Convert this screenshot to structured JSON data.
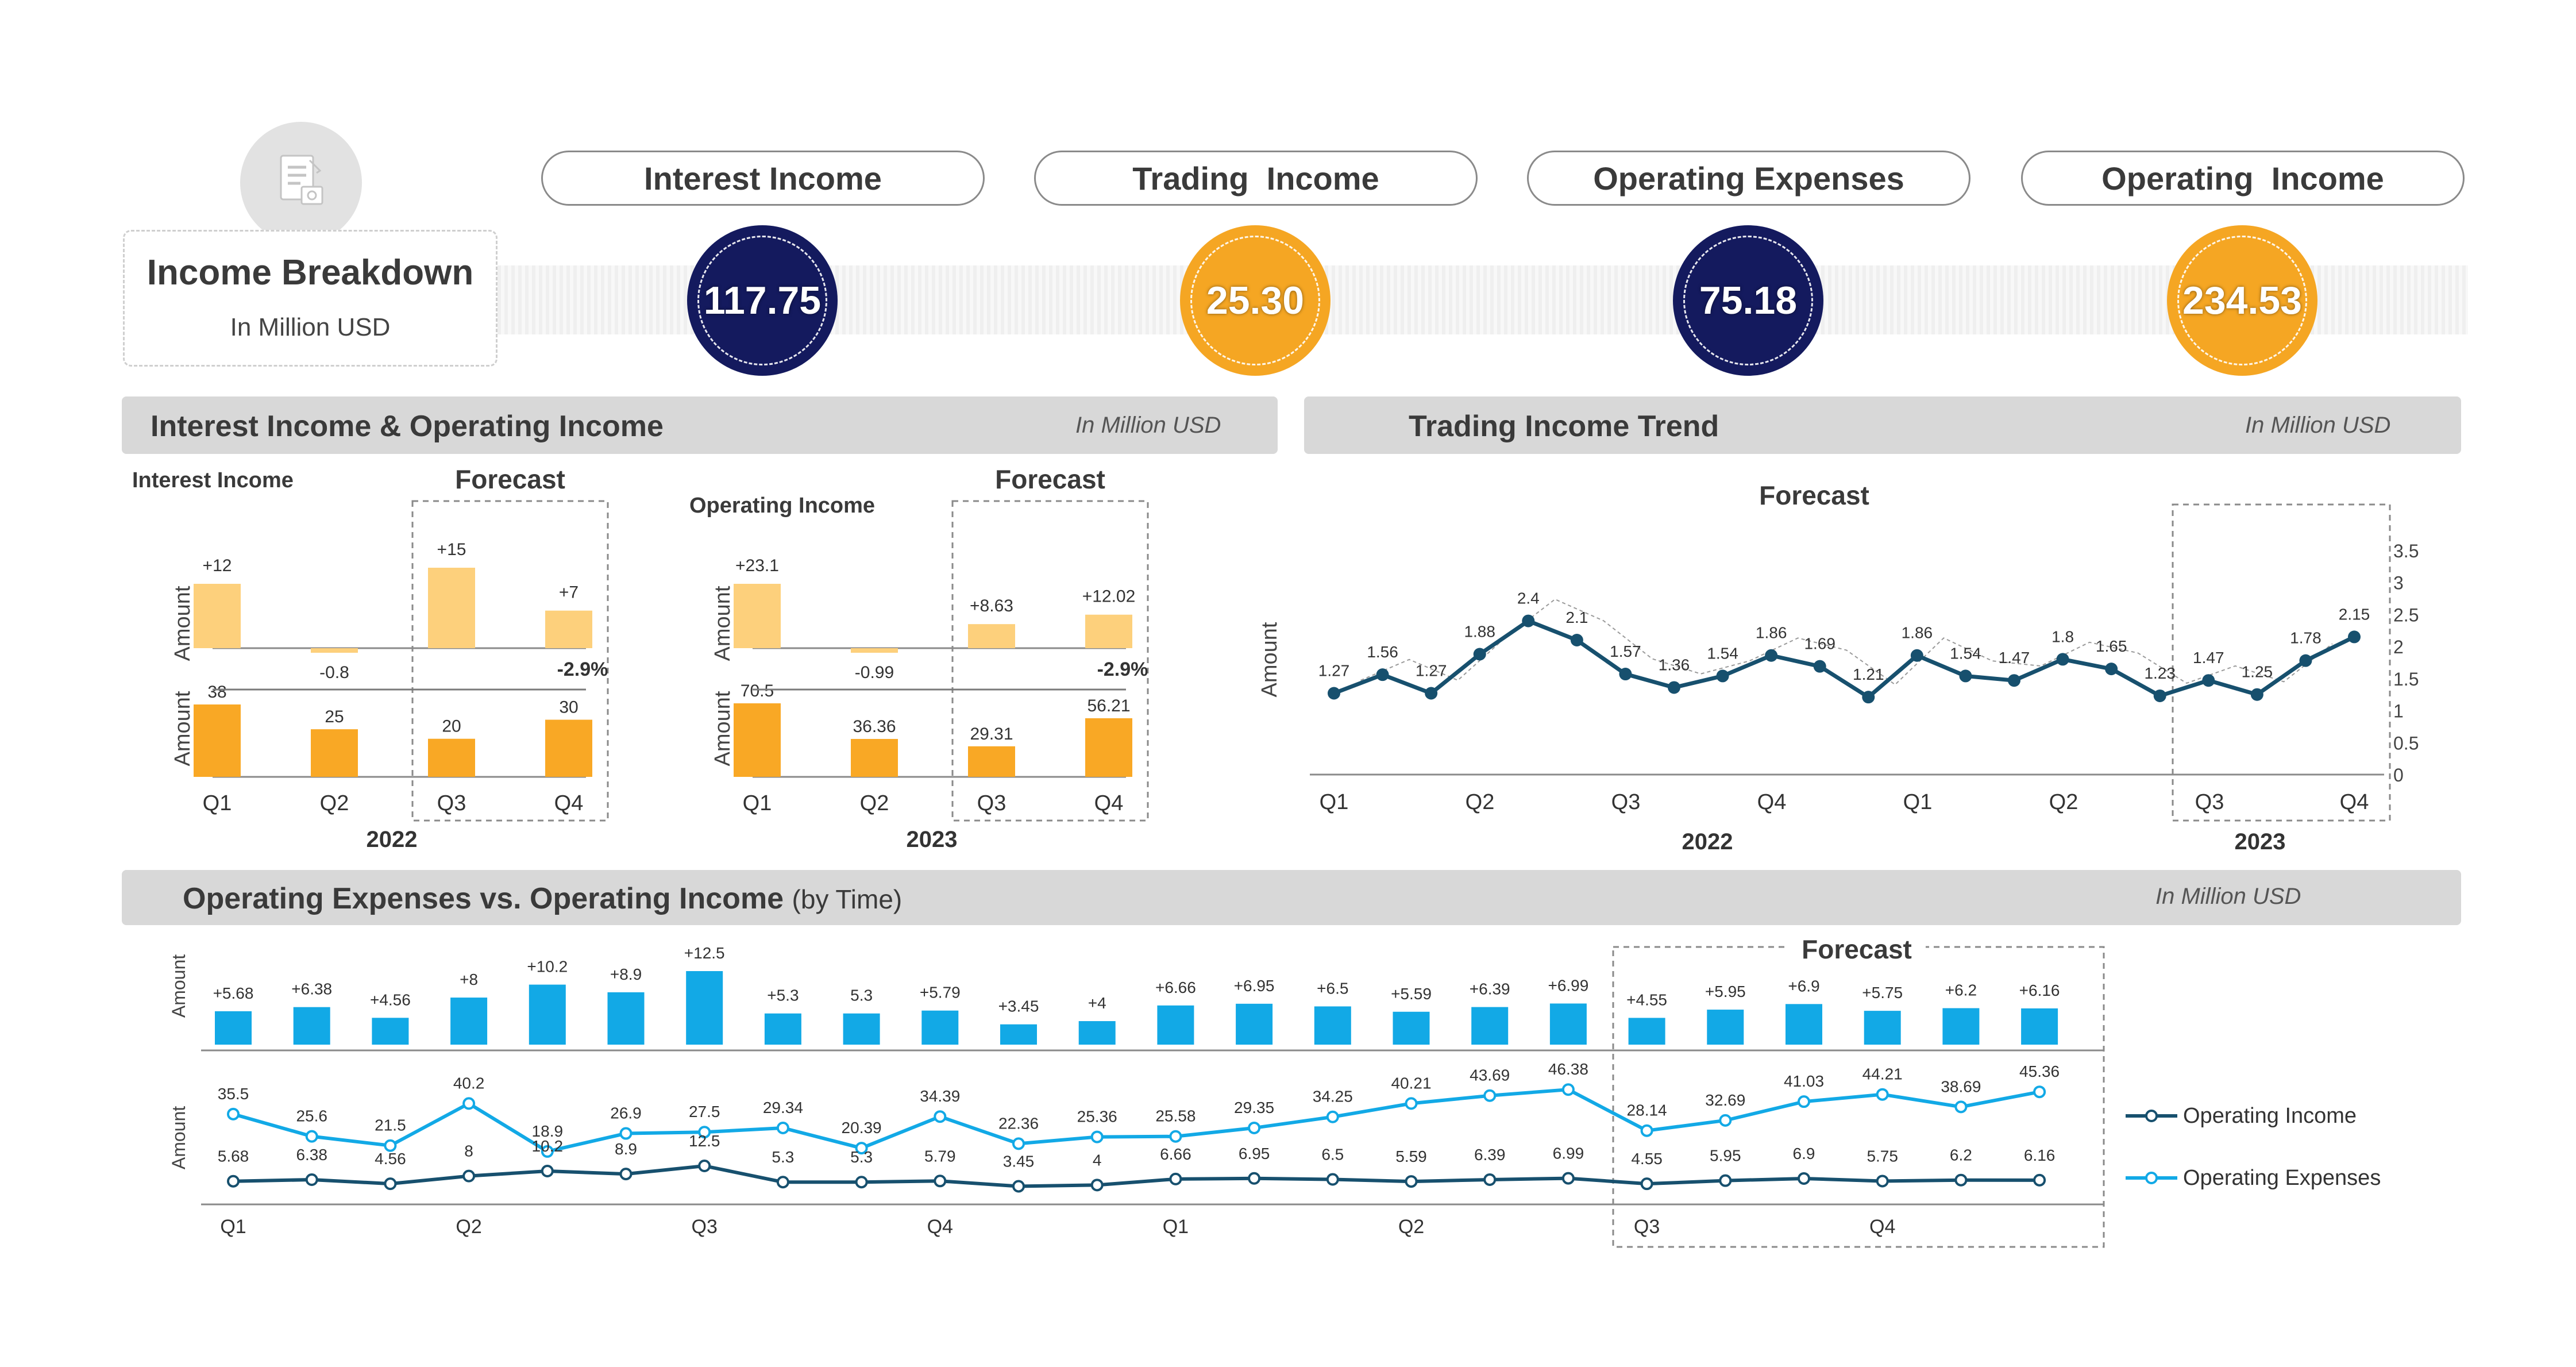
{
  "header": {
    "title": "Income Breakdown",
    "subtitle": "In Million USD",
    "icon": "document-icon"
  },
  "kpis": [
    {
      "label": "Interest Income",
      "value": "117.75",
      "color": "#141a5e"
    },
    {
      "label": "Trading  Income",
      "value": "25.30",
      "color": "#f5a623"
    },
    {
      "label": "Operating Expenses",
      "value": "75.18",
      "color": "#141a5e"
    },
    {
      "label": "Operating  Income",
      "value": "234.53",
      "color": "#f5a623"
    }
  ],
  "sections": {
    "left": {
      "title": "Interest Income & Operating Income",
      "unit": "In Million USD"
    },
    "right": {
      "title": "Trading Income Trend",
      "unit": "In Million USD"
    },
    "bottom": {
      "title": "Operating Expenses vs. Operating Income",
      "title_suffix": "(by Time)",
      "unit": "In Million USD"
    }
  },
  "colors": {
    "light_bar": "#fdd07c",
    "dark_bar": "#f9a825",
    "navy": "#17506e",
    "cyan": "#12a9e6",
    "band": "#d8d8d8"
  },
  "chart_data": [
    {
      "type": "bar",
      "name": "Interest Income",
      "top_label": "Interest Income",
      "forecast_label": "Forecast",
      "ylabel": "Amount",
      "year": "2022",
      "categories": [
        "Q1",
        "Q2",
        "Q3",
        "Q4"
      ],
      "change_values": [
        12,
        -0.8,
        15,
        7
      ],
      "change_labels": [
        "+12",
        "-0.8",
        "+15",
        "+7"
      ],
      "values": [
        38,
        25,
        20,
        30
      ],
      "value_labels": [
        "38",
        "25",
        "20",
        "30"
      ],
      "forecast_categories": [
        "Q3",
        "Q4"
      ],
      "annotation": "-2.9%"
    },
    {
      "type": "bar",
      "name": "Operating Income",
      "top_label": "Operating Income",
      "forecast_label": "Forecast",
      "ylabel": "Amount",
      "year": "2023",
      "categories": [
        "Q1",
        "Q2",
        "Q3",
        "Q4"
      ],
      "change_values": [
        23.1,
        -0.99,
        8.63,
        12.02
      ],
      "change_labels": [
        "+23.1",
        "-0.99",
        "+8.63",
        "+12.02"
      ],
      "values": [
        70.5,
        36.36,
        29.31,
        56.21
      ],
      "value_labels": [
        "70.5",
        "36.36",
        "29.31",
        "56.21"
      ],
      "forecast_categories": [
        "Q3",
        "Q4"
      ],
      "annotation": "-2.9%"
    },
    {
      "type": "line",
      "name": "Trading Income Trend",
      "forecast_label": "Forecast",
      "ylabel": "Amount",
      "ylim": [
        0,
        3.5
      ],
      "yticks": [
        "0",
        "0.5",
        "1",
        "1.5",
        "2",
        "2.5",
        "3",
        "3.5"
      ],
      "x_labels": [
        "Q1",
        "Q2",
        "Q3",
        "Q4",
        "Q1",
        "Q2",
        "Q3",
        "Q4"
      ],
      "years": [
        "2022",
        "2023"
      ],
      "series": [
        {
          "name": "Trading Income",
          "values": [
            1.27,
            1.56,
            1.27,
            1.88,
            2.4,
            2.1,
            1.57,
            1.36,
            1.54,
            1.86,
            1.69,
            1.21,
            1.86,
            1.54,
            1.47,
            1.8,
            1.65,
            1.23,
            1.47,
            1.25,
            1.78,
            2.15
          ],
          "labels": [
            "1.27",
            "1.56",
            "1.27",
            "1.88",
            "2.4",
            "2.1",
            "1.57",
            "1.36",
            "1.54",
            "1.86",
            "1.69",
            "1.21",
            "1.86",
            "1.54",
            "1.47",
            "1.8",
            "1.65",
            "1.23",
            "1.47",
            "1.25",
            "1.78",
            "2.15"
          ]
        }
      ],
      "forecast_range": "Q3-Q4 2023"
    },
    {
      "type": "bar",
      "name": "Operating Expenses vs. Operating Income change",
      "ylabel": "Amount",
      "forecast_label": "Forecast",
      "values": [
        5.68,
        6.38,
        4.56,
        8,
        10.2,
        8.9,
        12.5,
        5.3,
        5.3,
        5.79,
        3.45,
        4,
        6.66,
        6.95,
        6.5,
        5.59,
        6.39,
        6.99,
        4.55,
        5.95,
        6.9,
        5.75,
        6.2,
        6.16
      ],
      "labels": [
        "+5.68",
        "+6.38",
        "+4.56",
        "+8",
        "+10.2",
        "+8.9",
        "+12.5",
        "+5.3",
        "5.3",
        "+5.79",
        "+3.45",
        "+4",
        "+6.66",
        "+6.95",
        "+6.5",
        "+5.59",
        "+6.39",
        "+6.99",
        "+4.55",
        "+5.95",
        "+6.9",
        "+5.75",
        "+6.2",
        "+6.16"
      ]
    },
    {
      "type": "line",
      "name": "Operating Expenses vs. Operating Income",
      "ylabel": "Amount",
      "x_labels": [
        "Q1",
        "Q2",
        "Q3",
        "Q4",
        "Q1",
        "Q2",
        "Q3",
        "Q4"
      ],
      "series": [
        {
          "name": "Operating Income",
          "values": [
            5.68,
            6.38,
            4.56,
            8,
            10.2,
            8.9,
            12.5,
            5.3,
            5.3,
            5.79,
            3.45,
            4,
            6.66,
            6.95,
            6.5,
            5.59,
            6.39,
            6.99,
            4.55,
            5.95,
            6.9,
            5.75,
            6.2,
            6.16
          ],
          "labels": [
            "5.68",
            "6.38",
            "4.56",
            "8",
            "10.2",
            "8.9",
            "12.5",
            "5.3",
            "5.3",
            "5.79",
            "3.45",
            "4",
            "6.66",
            "6.95",
            "6.5",
            "5.59",
            "6.39",
            "6.99",
            "4.55",
            "5.95",
            "6.9",
            "5.75",
            "6.2",
            "6.16"
          ]
        },
        {
          "name": "Operating Expenses",
          "values": [
            35.5,
            25.6,
            21.5,
            40.2,
            18.9,
            26.9,
            27.5,
            29.34,
            20.39,
            34.39,
            22.36,
            25.36,
            25.58,
            29.35,
            34.25,
            40.21,
            43.69,
            46.38,
            28.14,
            32.69,
            41.03,
            44.21,
            38.69,
            45.36
          ],
          "labels": [
            "35.5",
            "25.6",
            "21.5",
            "40.2",
            "18.9",
            "26.9",
            "27.5",
            "29.34",
            "20.39",
            "34.39",
            "22.36",
            "25.36",
            "25.58",
            "29.35",
            "34.25",
            "40.21",
            "43.69",
            "46.38",
            "28.14",
            "32.69",
            "41.03",
            "44.21",
            "38.69",
            "45.36"
          ]
        }
      ]
    }
  ]
}
